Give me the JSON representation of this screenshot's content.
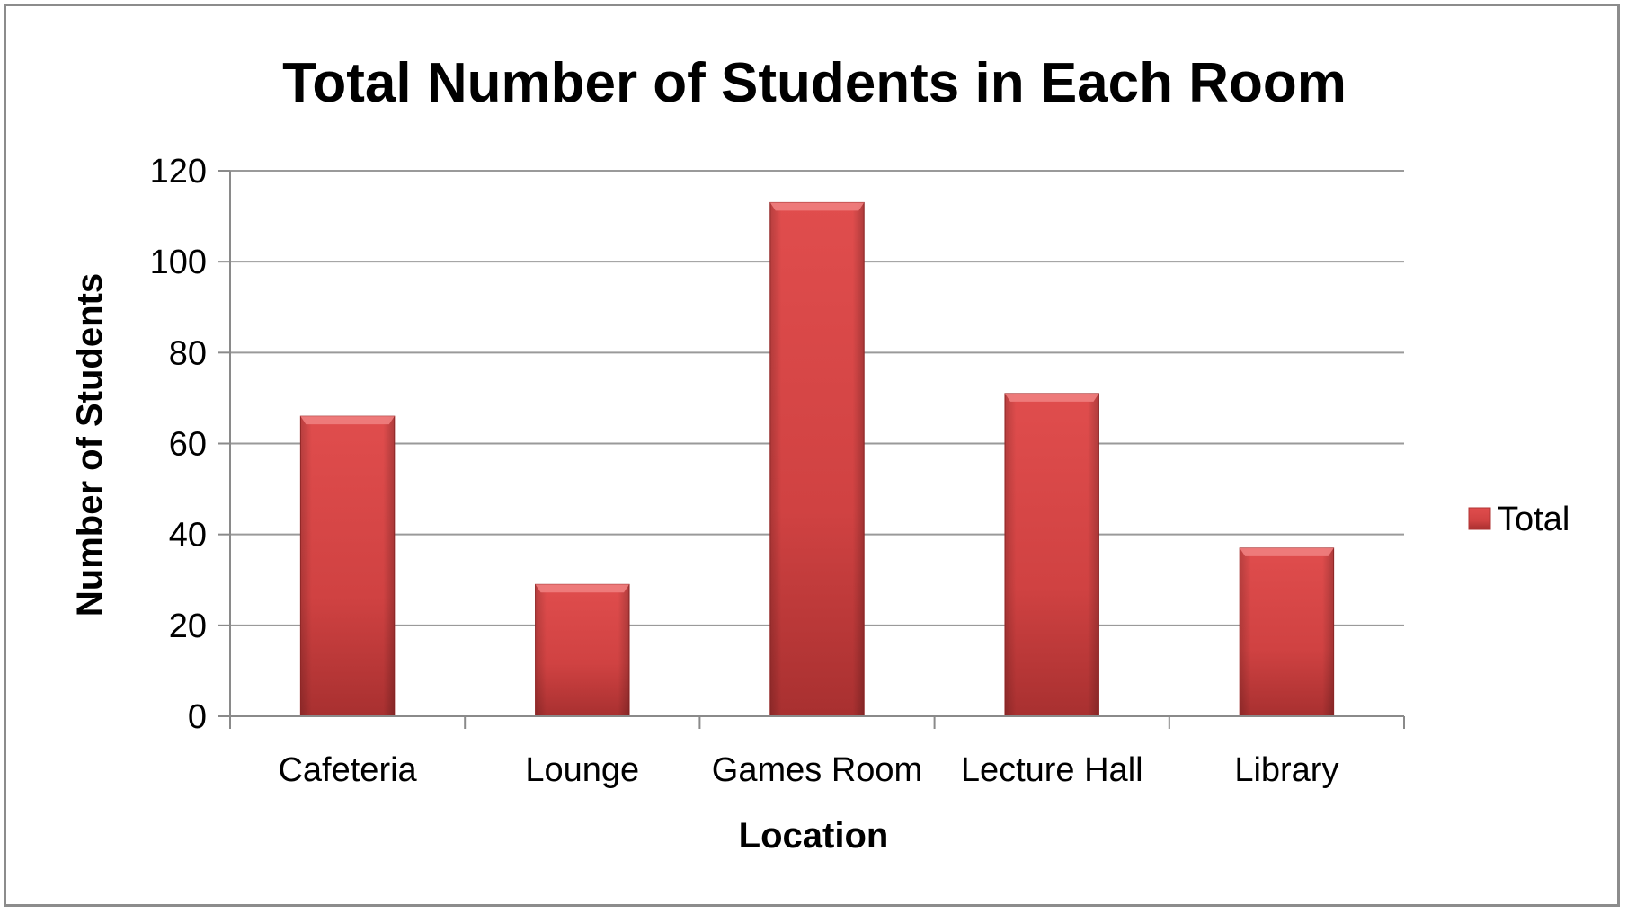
{
  "chart_data": {
    "type": "bar",
    "title": "Total Number of Students in Each Room",
    "xlabel": "Location",
    "ylabel": "Number of Students",
    "categories": [
      "Cafeteria",
      "Lounge",
      "Games Room",
      "Lecture Hall",
      "Library"
    ],
    "series": [
      {
        "name": "Total",
        "values": [
          66,
          29,
          113,
          71,
          37
        ]
      }
    ],
    "ylim": [
      0,
      120
    ],
    "yticks": [
      0,
      20,
      40,
      60,
      80,
      100,
      120
    ],
    "grid": true,
    "legend": "right",
    "colors": {
      "bar_light": "#e05252",
      "bar_mid": "#d24545",
      "bar_dark": "#a62e2e",
      "bar_top": "#f08080",
      "grid": "#9a9a9a",
      "axis": "#8a8a8a"
    }
  }
}
